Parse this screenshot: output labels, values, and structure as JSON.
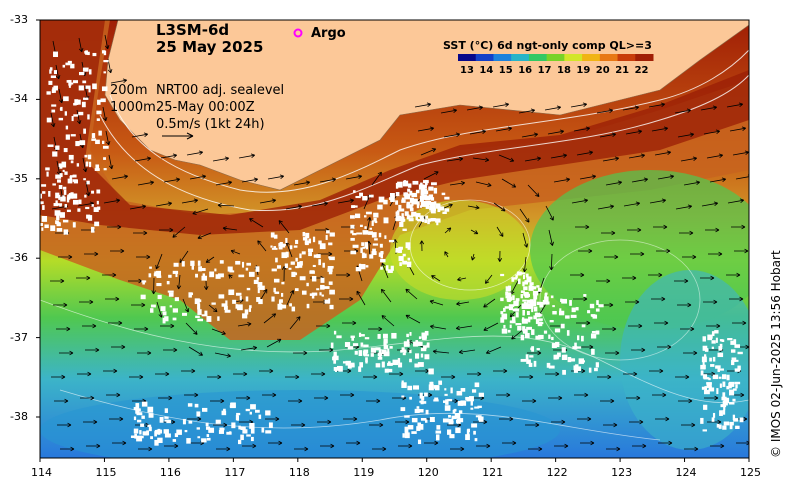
{
  "title": {
    "line1": "L3SM-6d",
    "line2": "25 May 2025"
  },
  "legend": {
    "argo_label": "Argo",
    "argo_color": "#ff00ff"
  },
  "contour_labels": {
    "c1": "200m",
    "c2": "1000m"
  },
  "product": {
    "line1": "NRT00 adj. sealevel",
    "line2": "25-May 00:00Z",
    "line3": "0.5m/s (1kt 24h)"
  },
  "colorbar": {
    "title": "SST (°C) 6d ngt-only comp QL>=3",
    "ticks": [
      "13",
      "14",
      "15",
      "16",
      "17",
      "18",
      "19",
      "20",
      "21",
      "22"
    ],
    "colors": [
      "#08088a",
      "#1440c8",
      "#1e82dc",
      "#28b4c8",
      "#32c864",
      "#78d228",
      "#d2e628",
      "#f0b414",
      "#e87814",
      "#c83c0a",
      "#a01e05"
    ]
  },
  "axes": {
    "x_ticks": [
      "114",
      "115",
      "116",
      "117",
      "118",
      "119",
      "120",
      "121",
      "122",
      "123",
      "124",
      "125"
    ],
    "y_ticks": [
      "-33",
      "-34",
      "-35",
      "-36",
      "-37",
      "-38"
    ]
  },
  "colors": {
    "land": "#fcc898",
    "ocean_warm": "#c85a14",
    "ocean_cool": "#3cb4c8"
  },
  "credit": "© IMOS 02-Jun-2025 13:56 Hobart"
}
